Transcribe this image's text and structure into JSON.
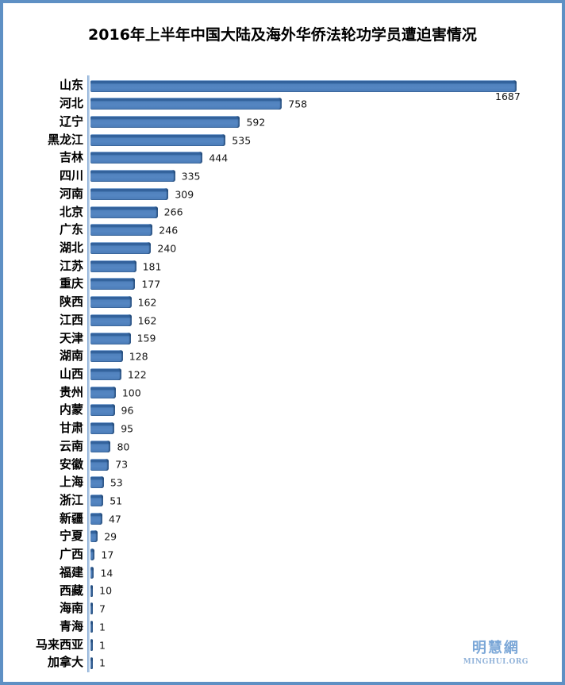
{
  "chart_data": {
    "type": "bar",
    "orientation": "horizontal",
    "title": "2016年上半年中国大陆及海外华侨法轮功学员遭迫害情况",
    "categories": [
      "山东",
      "河北",
      "辽宁",
      "黑龙江",
      "吉林",
      "四川",
      "河南",
      "北京",
      "广东",
      "湖北",
      "江苏",
      "重庆",
      "陕西",
      "江西",
      "天津",
      "湖南",
      "山西",
      "贵州",
      "内蒙",
      "甘肃",
      "云南",
      "安徽",
      "上海",
      "浙江",
      "新疆",
      "宁夏",
      "广西",
      "福建",
      "西藏",
      "海南",
      "青海",
      "马来西亚",
      "加拿大"
    ],
    "values": [
      1687,
      758,
      592,
      535,
      444,
      335,
      309,
      266,
      246,
      240,
      181,
      177,
      162,
      162,
      159,
      128,
      122,
      100,
      96,
      95,
      80,
      73,
      53,
      51,
      47,
      29,
      17,
      14,
      10,
      7,
      1,
      1,
      1
    ],
    "xlim": [
      0,
      1700
    ],
    "grid": false,
    "legend": false,
    "value_labels": "outside-end",
    "bar_color": "#4F81BD",
    "bar_edge_color": "#31609B",
    "axis_line_color": "#9BBBDF"
  },
  "watermark": {
    "chinese": "明慧網",
    "latin": "MINGHUI.ORG",
    "color": "#7BA7D7"
  },
  "frame": {
    "border_color": "#5E90C4",
    "background": "#FFFFFF"
  }
}
